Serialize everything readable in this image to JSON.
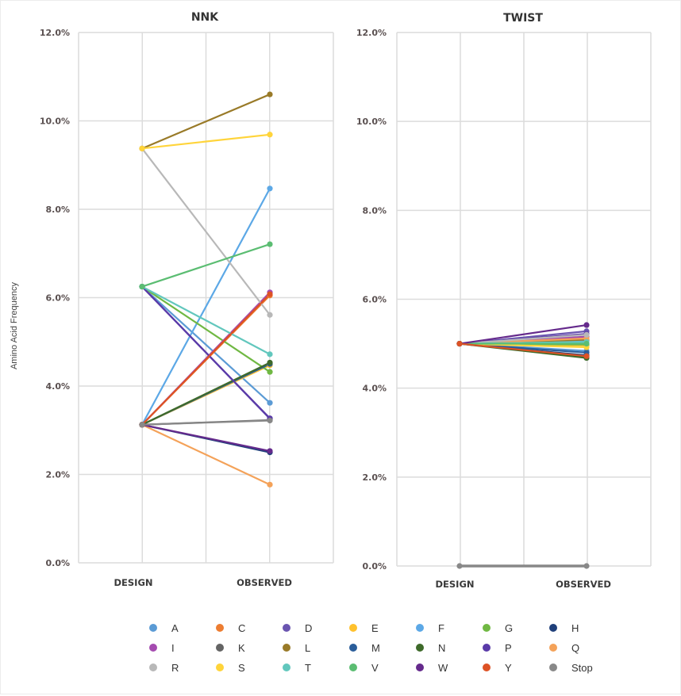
{
  "chart_data": [
    {
      "type": "line",
      "title": "NNK",
      "xlabel": "",
      "ylabel": "Amino Acid Frequency",
      "categories": [
        "DESIGN",
        "OBSERVED"
      ],
      "ylim": [
        0,
        12
      ],
      "yticks": [
        "0.0%",
        "2.0%",
        "4.0%",
        "6.0%",
        "8.0%",
        "10.0%",
        "12.0%"
      ],
      "grid": true,
      "series": [
        {
          "name": "A",
          "values": [
            6.25,
            3.62
          ]
        },
        {
          "name": "C",
          "values": [
            3.125,
            6.05
          ]
        },
        {
          "name": "D",
          "values": [
            6.25,
            3.26
          ]
        },
        {
          "name": "E",
          "values": [
            3.125,
            4.47
          ]
        },
        {
          "name": "F",
          "values": [
            3.125,
            8.47
          ]
        },
        {
          "name": "G",
          "values": [
            6.25,
            4.32
          ]
        },
        {
          "name": "H",
          "values": [
            3.125,
            2.5
          ]
        },
        {
          "name": "I",
          "values": [
            3.125,
            6.12
          ]
        },
        {
          "name": "K",
          "values": [
            3.125,
            3.23
          ]
        },
        {
          "name": "L",
          "values": [
            9.375,
            10.6
          ]
        },
        {
          "name": "M",
          "values": [
            3.125,
            4.5
          ]
        },
        {
          "name": "N",
          "values": [
            3.125,
            4.53
          ]
        },
        {
          "name": "P",
          "values": [
            6.25,
            3.27
          ]
        },
        {
          "name": "Q",
          "values": [
            3.125,
            1.77
          ]
        },
        {
          "name": "R",
          "values": [
            9.375,
            5.61
          ]
        },
        {
          "name": "S",
          "values": [
            9.375,
            9.69
          ]
        },
        {
          "name": "T",
          "values": [
            6.25,
            4.72
          ]
        },
        {
          "name": "V",
          "values": [
            6.25,
            7.21
          ]
        },
        {
          "name": "W",
          "values": [
            3.125,
            2.53
          ]
        },
        {
          "name": "Y",
          "values": [
            3.125,
            6.08
          ]
        },
        {
          "name": "Stop",
          "values": [
            3.125,
            3.22
          ]
        }
      ]
    },
    {
      "type": "line",
      "title": "TWIST",
      "xlabel": "",
      "ylabel": "",
      "categories": [
        "DESIGN",
        "OBSERVED"
      ],
      "ylim": [
        0,
        12
      ],
      "yticks": [
        "0.0%",
        "2.0%",
        "4.0%",
        "6.0%",
        "8.0%",
        "10.0%",
        "12.0%"
      ],
      "grid": true,
      "series": [
        {
          "name": "A",
          "values": [
            5.0,
            4.84
          ]
        },
        {
          "name": "C",
          "values": [
            5.0,
            5.13
          ]
        },
        {
          "name": "D",
          "values": [
            5.0,
            5.28
          ]
        },
        {
          "name": "E",
          "values": [
            5.0,
            4.96
          ]
        },
        {
          "name": "F",
          "values": [
            5.0,
            5.06
          ]
        },
        {
          "name": "G",
          "values": [
            5.0,
            4.98
          ]
        },
        {
          "name": "H",
          "values": [
            5.0,
            4.74
          ]
        },
        {
          "name": "I",
          "values": [
            5.0,
            5.16
          ]
        },
        {
          "name": "K",
          "values": [
            5.0,
            4.71
          ]
        },
        {
          "name": "L",
          "values": [
            5.0,
            5.09
          ]
        },
        {
          "name": "M",
          "values": [
            5.0,
            4.8
          ]
        },
        {
          "name": "N",
          "values": [
            5.0,
            4.68
          ]
        },
        {
          "name": "P",
          "values": [
            5.0,
            5.22
          ]
        },
        {
          "name": "Q",
          "values": [
            5.0,
            5.12
          ]
        },
        {
          "name": "R",
          "values": [
            5.0,
            5.2
          ]
        },
        {
          "name": "S",
          "values": [
            5.0,
            4.92
          ]
        },
        {
          "name": "T",
          "values": [
            5.0,
            5.04
          ]
        },
        {
          "name": "V",
          "values": [
            5.0,
            5.0
          ]
        },
        {
          "name": "W",
          "values": [
            5.0,
            5.42
          ]
        },
        {
          "name": "Y",
          "values": [
            5.0,
            4.72
          ]
        },
        {
          "name": "Stop",
          "values": [
            0.0,
            0.0
          ]
        }
      ]
    }
  ],
  "legend": {
    "placement": "bottom",
    "items": [
      {
        "name": "A",
        "color": "#5b9bd5"
      },
      {
        "name": "C",
        "color": "#ed7d31"
      },
      {
        "name": "D",
        "color": "#6a55b0"
      },
      {
        "name": "E",
        "color": "#ffc12d"
      },
      {
        "name": "F",
        "color": "#5ca8e6"
      },
      {
        "name": "G",
        "color": "#70b843"
      },
      {
        "name": "H",
        "color": "#1f3f7a"
      },
      {
        "name": "I",
        "color": "#a54bb0"
      },
      {
        "name": "K",
        "color": "#646464"
      },
      {
        "name": "L",
        "color": "#997a28"
      },
      {
        "name": "M",
        "color": "#2a5d9a"
      },
      {
        "name": "N",
        "color": "#3e6a2a"
      },
      {
        "name": "P",
        "color": "#5a3aa8"
      },
      {
        "name": "Q",
        "color": "#f4a259"
      },
      {
        "name": "R",
        "color": "#b8b8b8"
      },
      {
        "name": "S",
        "color": "#ffd43a"
      },
      {
        "name": "T",
        "color": "#62c7bd"
      },
      {
        "name": "V",
        "color": "#5bbd72"
      },
      {
        "name": "W",
        "color": "#652a8c"
      },
      {
        "name": "Y",
        "color": "#dd5225"
      },
      {
        "name": "Stop",
        "color": "#888888"
      }
    ]
  }
}
